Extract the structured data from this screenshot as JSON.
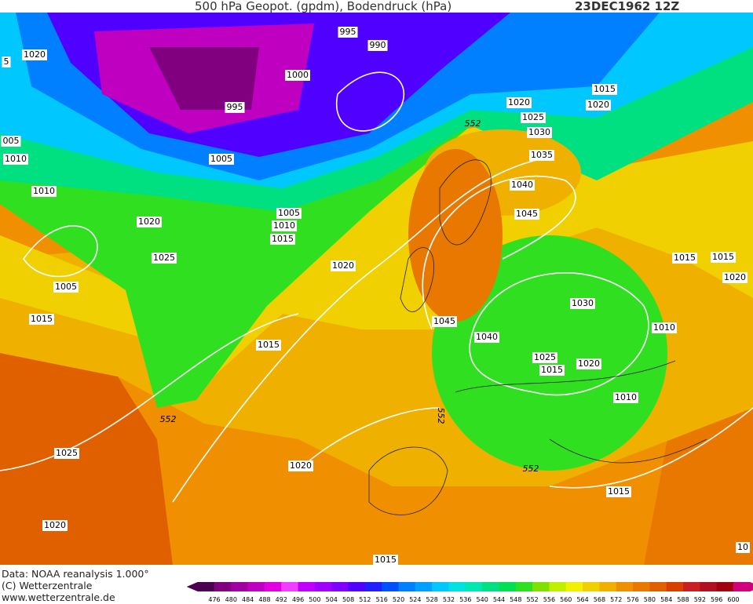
{
  "header": {
    "title": "500 hPa Geopot. (gpdm), Bodendruck (hPa)",
    "date": "23DEC1962 12Z"
  },
  "footer": {
    "source": "Data: NOAA reanalysis 1.000°",
    "copyright": "(C) Wetterzentrale",
    "url": "www.wetterzentrale.de"
  },
  "colorbar": {
    "labels": [
      "476",
      "480",
      "484",
      "488",
      "492",
      "496",
      "500",
      "504",
      "508",
      "512",
      "516",
      "520",
      "524",
      "528",
      "532",
      "536",
      "540",
      "544",
      "548",
      "552",
      "556",
      "560",
      "564",
      "568",
      "572",
      "576",
      "580",
      "584",
      "588",
      "592",
      "596",
      "600"
    ],
    "colors": [
      "#4b0050",
      "#800080",
      "#a000a0",
      "#c000c0",
      "#e000e0",
      "#f040ff",
      "#c000ff",
      "#a000ff",
      "#8000ff",
      "#5000ff",
      "#2020ff",
      "#0050ff",
      "#0080ff",
      "#00a0ff",
      "#00c8ff",
      "#00e0e0",
      "#00e8b0",
      "#00e080",
      "#00e050",
      "#30e020",
      "#80e000",
      "#c0f000",
      "#f0f000",
      "#f0d000",
      "#f0b000",
      "#f09000",
      "#e87800",
      "#e06000",
      "#d84000",
      "#c82020",
      "#b01020",
      "#a00010",
      "#d0007f"
    ]
  },
  "contour_labels": [
    "5",
    "1020",
    "995",
    "990",
    "1000",
    "995",
    "005",
    "1010",
    "1005",
    "552",
    "1020",
    "1025",
    "1030",
    "1035",
    "1040",
    "1045",
    "1015",
    "1020",
    "1010",
    "1020",
    "1005",
    "1010",
    "1015",
    "1025",
    "1020",
    "1015",
    "1015",
    "1020",
    "1005",
    "1015",
    "1030",
    "1045",
    "1040",
    "1010",
    "1015",
    "1025",
    "1020",
    "1015",
    "1010",
    "552",
    "552",
    "1025",
    "1020",
    "552",
    "1015",
    "1020",
    "10",
    "1015"
  ]
}
